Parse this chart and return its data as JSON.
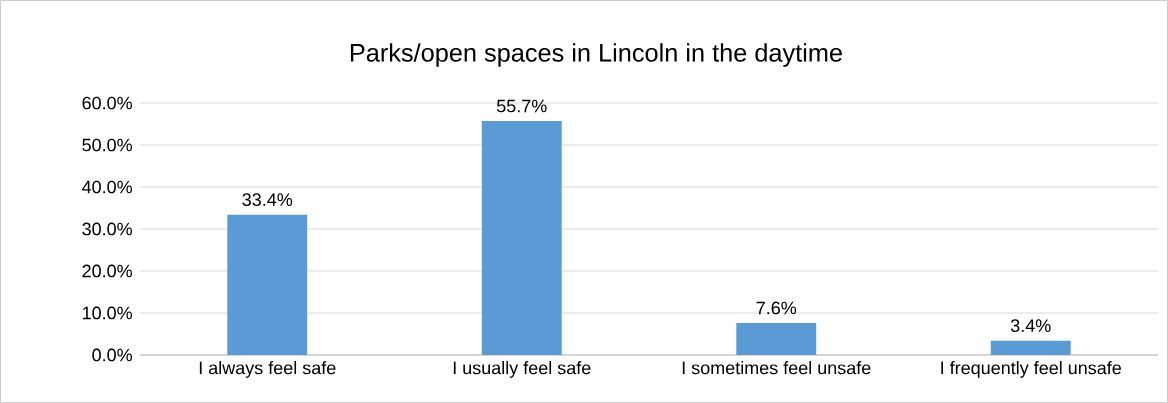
{
  "chart_data": {
    "type": "bar",
    "title": "Parks/open spaces in Lincoln in the daytime",
    "categories": [
      "I always feel safe",
      "I usually feel safe",
      "I sometimes feel unsafe",
      "I frequently feel unsafe"
    ],
    "values": [
      33.4,
      55.7,
      7.6,
      3.4
    ],
    "value_labels": [
      "33.4%",
      "55.7%",
      "7.6%",
      "3.4%"
    ],
    "color": "#5b9bd5",
    "ylim": [
      0,
      60
    ],
    "yticks": [
      {
        "value": 0,
        "label": "0.0%"
      },
      {
        "value": 10,
        "label": "10.0%"
      },
      {
        "value": 20,
        "label": "20.0%"
      },
      {
        "value": 30,
        "label": "30.0%"
      },
      {
        "value": 40,
        "label": "40.0%"
      },
      {
        "value": 50,
        "label": "50.0%"
      },
      {
        "value": 60,
        "label": "60.0%"
      }
    ],
    "grid": "y"
  }
}
